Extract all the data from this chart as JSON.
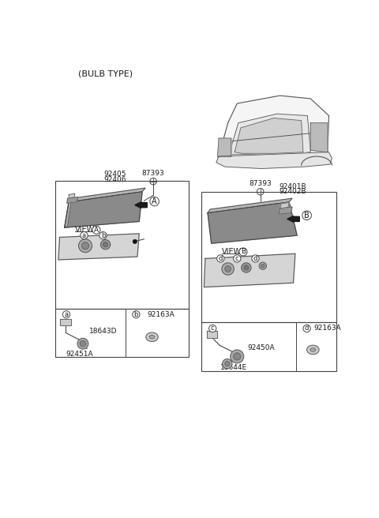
{
  "title": "(BULB TYPE)",
  "bg_color": "#ffffff",
  "part_numbers_left_top": [
    "92405",
    "92406"
  ],
  "part_number_left_screw": "87393",
  "part_number_right_screw": "87393",
  "part_numbers_right_top": [
    "92401B",
    "92402B"
  ],
  "part_a_label": "18643D",
  "part_a_number": "92451A",
  "part_b_label": "92163A",
  "part_c_label": "92450A",
  "part_c_number": "18644E",
  "part_d_label": "92163A",
  "label_A": "A",
  "label_B": "B",
  "view_A_text": "VIEW",
  "view_B_text": "VIEW",
  "gray_light": "#cccccc",
  "gray_mid": "#999999",
  "gray_dark": "#666666",
  "line_color": "#444444",
  "text_color": "#1a1a1a"
}
